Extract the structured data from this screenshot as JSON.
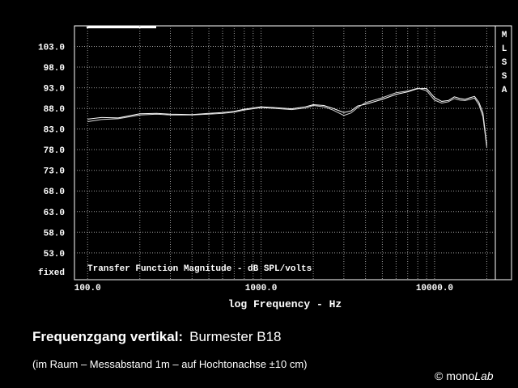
{
  "chart_data": {
    "type": "line",
    "title": "Transfer Function Magnitude - dB SPL/volts",
    "xlabel": "log Frequency - Hz",
    "ylabel_note": "fixed",
    "side_label": "MLSSA",
    "x": [
      100,
      120,
      150,
      200,
      250,
      300,
      400,
      500,
      600,
      700,
      800,
      1000,
      1200,
      1500,
      1800,
      2000,
      2300,
      2600,
      3000,
      3300,
      3600,
      4000,
      5000,
      6000,
      7000,
      8000,
      9000,
      10000,
      11000,
      12000,
      13000,
      14000,
      15000,
      16000,
      17000,
      18000,
      19000,
      20000
    ],
    "series": [
      {
        "color": "#ffffff",
        "values": [
          85.4,
          85.8,
          85.7,
          86.7,
          86.8,
          86.6,
          86.5,
          86.8,
          87.0,
          87.3,
          87.8,
          88.4,
          88.2,
          87.9,
          88.4,
          88.9,
          88.7,
          88.0,
          87.0,
          87.4,
          88.6,
          89.0,
          90.2,
          91.4,
          92.0,
          92.8,
          92.8,
          90.6,
          89.7,
          89.9,
          90.8,
          90.4,
          90.2,
          90.6,
          90.9,
          89.5,
          86.9,
          79.1
        ]
      },
      {
        "color": "#d8d8d8",
        "values": [
          84.8,
          85.3,
          85.5,
          86.4,
          86.6,
          86.4,
          86.4,
          86.6,
          86.8,
          87.1,
          87.6,
          88.2,
          88.0,
          87.7,
          88.1,
          88.7,
          88.4,
          87.6,
          86.3,
          86.9,
          88.2,
          89.4,
          90.6,
          91.8,
          92.2,
          92.9,
          92.3,
          90.0,
          89.3,
          89.6,
          90.4,
          90.0,
          89.9,
          90.2,
          90.5,
          88.9,
          86.0,
          78.5
        ]
      }
    ],
    "log_x": true,
    "xlim": [
      84,
      22400
    ],
    "ylim": [
      46.5,
      108
    ],
    "xticks": [
      {
        "value": 100,
        "label": "100.0"
      },
      {
        "value": 1000,
        "label": "1000.0"
      },
      {
        "value": 10000,
        "label": "10000.0"
      }
    ],
    "xminorticks": [
      200,
      300,
      400,
      500,
      600,
      700,
      800,
      900,
      2000,
      3000,
      4000,
      5000,
      6000,
      7000,
      8000,
      9000,
      20000
    ],
    "yticks": [
      {
        "value": 53,
        "label": "53.0"
      },
      {
        "value": 58,
        "label": "58.0"
      },
      {
        "value": 63,
        "label": "63.0"
      },
      {
        "value": 68,
        "label": "68.0"
      },
      {
        "value": 73,
        "label": "73.0"
      },
      {
        "value": 78,
        "label": "78.0"
      },
      {
        "value": 83,
        "label": "83.0"
      },
      {
        "value": 88,
        "label": "88.0"
      },
      {
        "value": 93,
        "label": "93.0"
      },
      {
        "value": 98,
        "label": "98.0"
      },
      {
        "value": 103,
        "label": "103.0"
      }
    ],
    "grid": true
  },
  "caption": {
    "title": "Frequenzgang vertikal:",
    "subject": "Burmester B18",
    "note": "(im Raum – Messabstand 1m – auf Hochtonachse ±10 cm)",
    "credit": "© mono",
    "credit_italic": "Lab"
  }
}
